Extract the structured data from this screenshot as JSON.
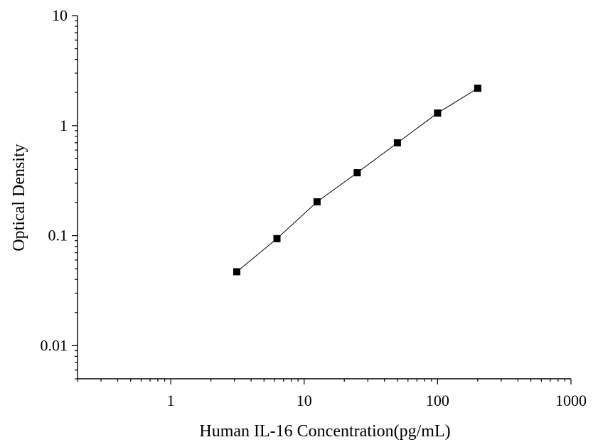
{
  "chart_data": {
    "type": "scatter",
    "xlabel": "Human IL-16 Concentration(pg/mL)",
    "ylabel": "Optical Density",
    "x_scale": "log",
    "y_scale": "log",
    "xlim": [
      0.2,
      1000
    ],
    "ylim": [
      0.005,
      10
    ],
    "x_ticks": [
      1,
      10,
      100,
      1000
    ],
    "x_tick_labels": [
      "1",
      "10",
      "100",
      "1000"
    ],
    "y_ticks": [
      0.01,
      0.1,
      1,
      10
    ],
    "y_tick_labels": [
      "0.01",
      "0.1",
      "1",
      "10"
    ],
    "grid": false,
    "series": [
      {
        "marker": "square",
        "line": true,
        "color": "#000000",
        "points": [
          {
            "x": 3.125,
            "y": 0.047
          },
          {
            "x": 6.25,
            "y": 0.094
          },
          {
            "x": 12.5,
            "y": 0.203
          },
          {
            "x": 25,
            "y": 0.373
          },
          {
            "x": 50,
            "y": 0.698
          },
          {
            "x": 100,
            "y": 1.302
          },
          {
            "x": 200,
            "y": 2.187
          }
        ]
      }
    ]
  }
}
